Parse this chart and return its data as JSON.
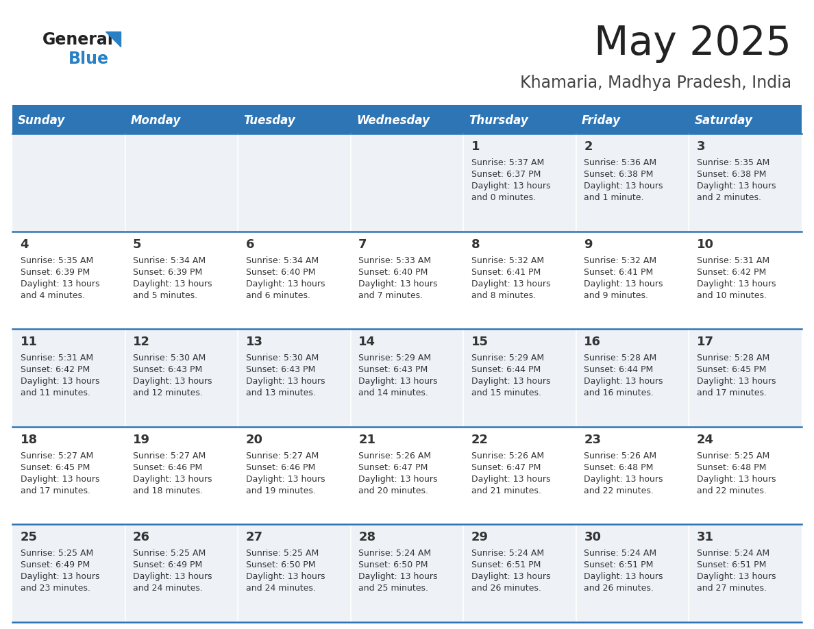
{
  "title": "May 2025",
  "subtitle": "Khamaria, Madhya Pradesh, India",
  "days_of_week": [
    "Sunday",
    "Monday",
    "Tuesday",
    "Wednesday",
    "Thursday",
    "Friday",
    "Saturday"
  ],
  "header_bg": "#2e75b6",
  "header_text": "#ffffff",
  "row_bg_odd": "#eef2f7",
  "row_bg_even": "#ffffff",
  "cell_text": "#333333",
  "border_color": "#2e75b6",
  "title_color": "#222222",
  "subtitle_color": "#444444",
  "logo_general_color": "#222222",
  "logo_blue_color": "#2980c4",
  "calendar_data": [
    [
      null,
      null,
      null,
      null,
      {
        "day": "1",
        "sunrise": "5:37 AM",
        "sunset": "6:37 PM",
        "daylight_h": "13 hours",
        "daylight_m": "and 0 minutes."
      },
      {
        "day": "2",
        "sunrise": "5:36 AM",
        "sunset": "6:38 PM",
        "daylight_h": "13 hours",
        "daylight_m": "and 1 minute."
      },
      {
        "day": "3",
        "sunrise": "5:35 AM",
        "sunset": "6:38 PM",
        "daylight_h": "13 hours",
        "daylight_m": "and 2 minutes."
      }
    ],
    [
      {
        "day": "4",
        "sunrise": "5:35 AM",
        "sunset": "6:39 PM",
        "daylight_h": "13 hours",
        "daylight_m": "and 4 minutes."
      },
      {
        "day": "5",
        "sunrise": "5:34 AM",
        "sunset": "6:39 PM",
        "daylight_h": "13 hours",
        "daylight_m": "and 5 minutes."
      },
      {
        "day": "6",
        "sunrise": "5:34 AM",
        "sunset": "6:40 PM",
        "daylight_h": "13 hours",
        "daylight_m": "and 6 minutes."
      },
      {
        "day": "7",
        "sunrise": "5:33 AM",
        "sunset": "6:40 PM",
        "daylight_h": "13 hours",
        "daylight_m": "and 7 minutes."
      },
      {
        "day": "8",
        "sunrise": "5:32 AM",
        "sunset": "6:41 PM",
        "daylight_h": "13 hours",
        "daylight_m": "and 8 minutes."
      },
      {
        "day": "9",
        "sunrise": "5:32 AM",
        "sunset": "6:41 PM",
        "daylight_h": "13 hours",
        "daylight_m": "and 9 minutes."
      },
      {
        "day": "10",
        "sunrise": "5:31 AM",
        "sunset": "6:42 PM",
        "daylight_h": "13 hours",
        "daylight_m": "and 10 minutes."
      }
    ],
    [
      {
        "day": "11",
        "sunrise": "5:31 AM",
        "sunset": "6:42 PM",
        "daylight_h": "13 hours",
        "daylight_m": "and 11 minutes."
      },
      {
        "day": "12",
        "sunrise": "5:30 AM",
        "sunset": "6:43 PM",
        "daylight_h": "13 hours",
        "daylight_m": "and 12 minutes."
      },
      {
        "day": "13",
        "sunrise": "5:30 AM",
        "sunset": "6:43 PM",
        "daylight_h": "13 hours",
        "daylight_m": "and 13 minutes."
      },
      {
        "day": "14",
        "sunrise": "5:29 AM",
        "sunset": "6:43 PM",
        "daylight_h": "13 hours",
        "daylight_m": "and 14 minutes."
      },
      {
        "day": "15",
        "sunrise": "5:29 AM",
        "sunset": "6:44 PM",
        "daylight_h": "13 hours",
        "daylight_m": "and 15 minutes."
      },
      {
        "day": "16",
        "sunrise": "5:28 AM",
        "sunset": "6:44 PM",
        "daylight_h": "13 hours",
        "daylight_m": "and 16 minutes."
      },
      {
        "day": "17",
        "sunrise": "5:28 AM",
        "sunset": "6:45 PM",
        "daylight_h": "13 hours",
        "daylight_m": "and 17 minutes."
      }
    ],
    [
      {
        "day": "18",
        "sunrise": "5:27 AM",
        "sunset": "6:45 PM",
        "daylight_h": "13 hours",
        "daylight_m": "and 17 minutes."
      },
      {
        "day": "19",
        "sunrise": "5:27 AM",
        "sunset": "6:46 PM",
        "daylight_h": "13 hours",
        "daylight_m": "and 18 minutes."
      },
      {
        "day": "20",
        "sunrise": "5:27 AM",
        "sunset": "6:46 PM",
        "daylight_h": "13 hours",
        "daylight_m": "and 19 minutes."
      },
      {
        "day": "21",
        "sunrise": "5:26 AM",
        "sunset": "6:47 PM",
        "daylight_h": "13 hours",
        "daylight_m": "and 20 minutes."
      },
      {
        "day": "22",
        "sunrise": "5:26 AM",
        "sunset": "6:47 PM",
        "daylight_h": "13 hours",
        "daylight_m": "and 21 minutes."
      },
      {
        "day": "23",
        "sunrise": "5:26 AM",
        "sunset": "6:48 PM",
        "daylight_h": "13 hours",
        "daylight_m": "and 22 minutes."
      },
      {
        "day": "24",
        "sunrise": "5:25 AM",
        "sunset": "6:48 PM",
        "daylight_h": "13 hours",
        "daylight_m": "and 22 minutes."
      }
    ],
    [
      {
        "day": "25",
        "sunrise": "5:25 AM",
        "sunset": "6:49 PM",
        "daylight_h": "13 hours",
        "daylight_m": "and 23 minutes."
      },
      {
        "day": "26",
        "sunrise": "5:25 AM",
        "sunset": "6:49 PM",
        "daylight_h": "13 hours",
        "daylight_m": "and 24 minutes."
      },
      {
        "day": "27",
        "sunrise": "5:25 AM",
        "sunset": "6:50 PM",
        "daylight_h": "13 hours",
        "daylight_m": "and 24 minutes."
      },
      {
        "day": "28",
        "sunrise": "5:24 AM",
        "sunset": "6:50 PM",
        "daylight_h": "13 hours",
        "daylight_m": "and 25 minutes."
      },
      {
        "day": "29",
        "sunrise": "5:24 AM",
        "sunset": "6:51 PM",
        "daylight_h": "13 hours",
        "daylight_m": "and 26 minutes."
      },
      {
        "day": "30",
        "sunrise": "5:24 AM",
        "sunset": "6:51 PM",
        "daylight_h": "13 hours",
        "daylight_m": "and 26 minutes."
      },
      {
        "day": "31",
        "sunrise": "5:24 AM",
        "sunset": "6:51 PM",
        "daylight_h": "13 hours",
        "daylight_m": "and 27 minutes."
      }
    ]
  ]
}
